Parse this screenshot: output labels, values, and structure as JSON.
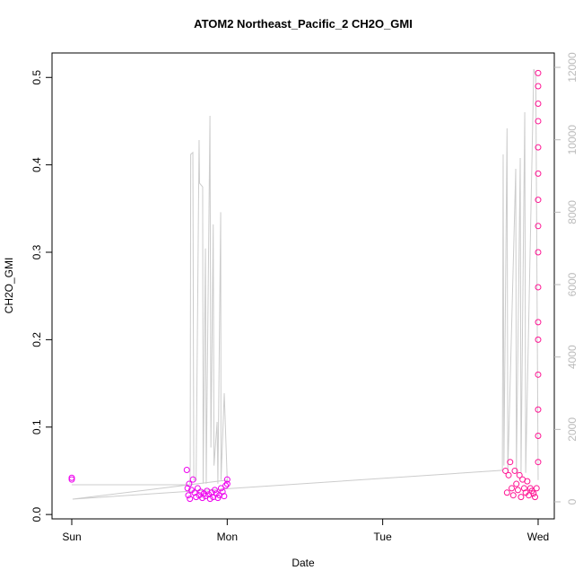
{
  "chart_data": {
    "type": "scatter",
    "title": "ATOM2 Northeast_Pacific_2 CH2O_GMI",
    "x_label": "Date",
    "y_label": "CH2O_GMI",
    "xlim": [
      -0.127,
      3.104
    ],
    "xticks": [
      {
        "value": 0,
        "label": "Sun"
      },
      {
        "value": 1,
        "label": "Mon"
      },
      {
        "value": 2,
        "label": "Tue"
      },
      {
        "value": 3,
        "label": "Wed"
      }
    ],
    "ylim": [
      -0.005,
      0.528
    ],
    "yticks": [
      {
        "value": 0,
        "label": "0.0"
      },
      0.1,
      0.2,
      0.3,
      0.4,
      0.5
    ],
    "y2lim": [
      -471,
      12398
    ],
    "y2ticks": [
      0,
      2000,
      4000,
      6000,
      8000,
      10000,
      12000
    ],
    "y2color": "#bbbbbb",
    "series": [
      {
        "color": "#ee00ee",
        "x": [
          0,
          0,
          0.74,
          0.745,
          0.75,
          0.755,
          0.76,
          0.77,
          0.78,
          0.79,
          0.8,
          0.81,
          0.82,
          0.83,
          0.84,
          0.85,
          0.86,
          0.87,
          0.88,
          0.89,
          0.9,
          0.91,
          0.92,
          0.93,
          0.94,
          0.95,
          0.96,
          0.97,
          0.98,
          0.99,
          1.0,
          1.0
        ],
        "values": [
          0.04,
          0.042,
          0.051,
          0.03,
          0.022,
          0.035,
          0.018,
          0.028,
          0.04,
          0.025,
          0.02,
          0.03,
          0.022,
          0.026,
          0.019,
          0.024,
          0.021,
          0.027,
          0.023,
          0.018,
          0.025,
          0.02,
          0.028,
          0.024,
          0.019,
          0.022,
          0.03,
          0.026,
          0.021,
          0.033,
          0.04,
          0.035
        ]
      },
      {
        "color": "#ff1493",
        "x": [
          2.79,
          2.8,
          2.81,
          2.82,
          2.83,
          2.84,
          2.85,
          2.86,
          2.87,
          2.88,
          2.89,
          2.9,
          2.91,
          2.92,
          2.93,
          2.94,
          2.95,
          2.96,
          2.97,
          2.98,
          2.99,
          3.0,
          3.0,
          3.0,
          3.0,
          3.0,
          3.0,
          3.0,
          3.0,
          3.0,
          3.0,
          3.0,
          3.0,
          3.0,
          3.0,
          3.0,
          3.0
        ],
        "values": [
          0.05,
          0.025,
          0.045,
          0.06,
          0.03,
          0.022,
          0.05,
          0.035,
          0.028,
          0.045,
          0.02,
          0.04,
          0.03,
          0.025,
          0.038,
          0.022,
          0.03,
          0.027,
          0.024,
          0.02,
          0.03,
          0.06,
          0.09,
          0.12,
          0.16,
          0.2,
          0.22,
          0.26,
          0.3,
          0.33,
          0.36,
          0.39,
          0.42,
          0.45,
          0.47,
          0.49,
          0.505
        ]
      },
      {
        "type": "line",
        "axis": "y2",
        "color": "#cccccc",
        "x": [
          0,
          0.76,
          0.762,
          0.765,
          0.779,
          0.785,
          0.8,
          0.819,
          0.822,
          0.842,
          0.845,
          0.86,
          0.865,
          0.889,
          0.895,
          0.91,
          0.915,
          0.935,
          0.94,
          0.958,
          0.96,
          0.981,
          1.0,
          0.005,
          2.77,
          2.775,
          2.78,
          2.8,
          2.805,
          2.856,
          2.86,
          2.885,
          2.89,
          2.914,
          2.92,
          2.972,
          2.985,
          3.0
        ],
        "values": [
          470,
          470,
          1000,
          9596,
          9650,
          600,
          600,
          9993,
          8800,
          8700,
          500,
          7000,
          500,
          10662,
          1500,
          7662,
          1000,
          2207,
          500,
          8000,
          600,
          3000,
          600,
          75,
          870,
          9596,
          1000,
          10315,
          800,
          9199,
          800,
          9497,
          800,
          10761,
          800,
          11952,
          11778,
          600
        ]
      }
    ]
  }
}
